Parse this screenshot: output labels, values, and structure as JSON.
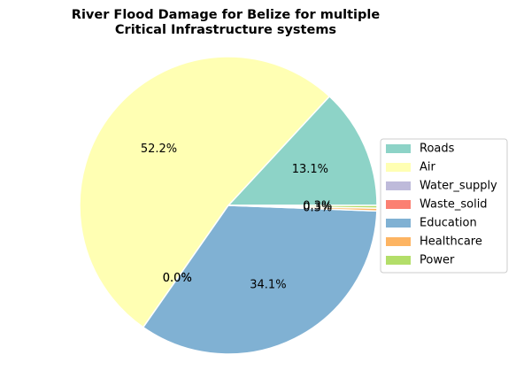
{
  "chart_data": {
    "type": "pie",
    "title": "River Flood Damage for Belize for multiple\nCritical Infrastructure systems",
    "categories": [
      "Roads",
      "Air",
      "Water_supply",
      "Waste_solid",
      "Education",
      "Healthcare",
      "Power"
    ],
    "values": [
      13.1,
      52.2,
      0.0,
      0.0,
      34.1,
      0.3,
      0.3
    ],
    "value_labels": [
      "13.1%",
      "52.2%",
      "0.0%",
      "0.0%",
      "34.1%",
      "0.3%",
      "0.3%"
    ],
    "colors": [
      "#8dd3c7",
      "#ffffb3",
      "#bebada",
      "#fb8072",
      "#80b1d3",
      "#fdb462",
      "#b3de69"
    ],
    "legend": "right"
  }
}
